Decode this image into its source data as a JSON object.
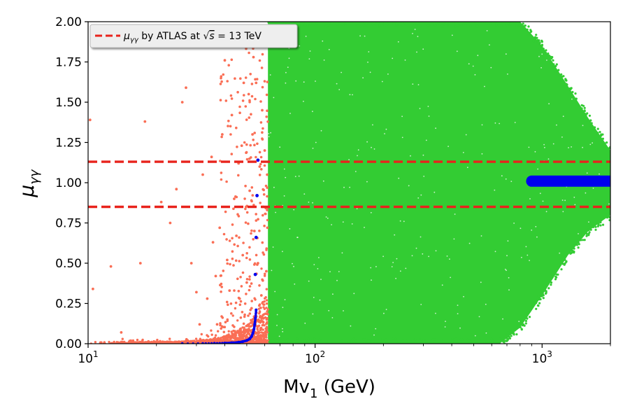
{
  "chart_data": {
    "type": "scatter",
    "title": "",
    "xlabel": {
      "main": "Mv",
      "sub": "1",
      "unit": " (GeV)"
    },
    "ylabel": {
      "main": "μ",
      "sub": "γγ"
    },
    "x_scale": "log",
    "xlim": [
      10,
      2000
    ],
    "ylim": [
      0,
      2
    ],
    "x_ticks": [
      {
        "value": 10,
        "base": "10",
        "exp": "1"
      },
      {
        "value": 100,
        "base": "10",
        "exp": "2"
      },
      {
        "value": 1000,
        "base": "10",
        "exp": "3"
      }
    ],
    "y_ticks": [
      "0.00",
      "0.25",
      "0.50",
      "0.75",
      "1.00",
      "1.25",
      "1.50",
      "1.75",
      "2.00"
    ],
    "grid": false,
    "legend_position": "top-left",
    "colors": {
      "allowed_region": "#33cc33",
      "excluded_points": "#fa6e55",
      "constraint_points": "#0000ee",
      "atlas_band": "#e8231c"
    },
    "series": [
      {
        "name": "μγγ by ATLAS at √s = 13 TeV",
        "legend_prefix": "μ",
        "legend_prefix_sub": "γγ",
        "legend_text": " by ATLAS at ",
        "legend_sqrt_symbol": "√",
        "legend_sqrt_arg": "s",
        "legend_suffix": " = 13 TeV",
        "style": "dashed",
        "y_values": [
          0.85,
          1.13
        ]
      },
      {
        "name": "",
        "role": "allowed_region",
        "style": "dense-scatter",
        "envelope": [
          {
            "x": 62,
            "y_min": 0.0,
            "y_max": 2.0
          },
          {
            "x": 650,
            "y_min": 0.0,
            "y_max": 2.0
          },
          {
            "x": 800,
            "y_min": 0.1,
            "y_max": 2.0
          },
          {
            "x": 1000,
            "y_min": 0.3,
            "y_max": 1.85
          },
          {
            "x": 1300,
            "y_min": 0.55,
            "y_max": 1.6
          },
          {
            "x": 1600,
            "y_min": 0.7,
            "y_max": 1.4
          },
          {
            "x": 2000,
            "y_min": 0.8,
            "y_max": 1.2
          }
        ]
      },
      {
        "name": "",
        "role": "excluded_points",
        "style": "scatter",
        "points": [
          [
            10.2,
            1.39
          ],
          [
            10.5,
            0.34
          ],
          [
            12.6,
            0.48
          ],
          [
            14.0,
            0.07
          ],
          [
            17.0,
            0.5
          ],
          [
            17.8,
            1.38
          ],
          [
            21.0,
            0.88
          ],
          [
            23.0,
            0.75
          ],
          [
            24.5,
            0.96
          ],
          [
            26.0,
            1.5
          ],
          [
            27.0,
            1.59
          ],
          [
            28.5,
            0.5
          ],
          [
            30.0,
            0.32
          ],
          [
            31.0,
            0.12
          ],
          [
            32.0,
            1.05
          ],
          [
            33.5,
            0.28
          ],
          [
            35.0,
            1.16
          ],
          [
            35.5,
            0.63
          ],
          [
            36.5,
            0.42
          ],
          [
            37.0,
            0.12
          ],
          [
            38.0,
            0.72
          ],
          [
            39.0,
            1.3
          ],
          [
            40.0,
            1.76
          ],
          [
            41.0,
            0.52
          ],
          [
            42.0,
            0.33
          ],
          [
            43.0,
            1.42
          ],
          [
            44.0,
            0.9
          ],
          [
            45.0,
            0.67
          ],
          [
            46.0,
            1.12
          ],
          [
            46.5,
            0.28
          ],
          [
            47.5,
            1.23
          ],
          [
            48.0,
            0.55
          ],
          [
            49.0,
            1.87
          ],
          [
            50.0,
            0.38
          ],
          [
            51.0,
            1.55
          ],
          [
            51.5,
            0.95
          ],
          [
            52.5,
            0.22
          ],
          [
            53.0,
            1.3
          ],
          [
            54.0,
            0.7
          ],
          [
            55.0,
            1.62
          ],
          [
            56.0,
            0.5
          ],
          [
            57.0,
            1.1
          ],
          [
            58.0,
            0.3
          ],
          [
            59.0,
            0.85
          ],
          [
            60.0,
            1.2
          ],
          [
            61.0,
            0.45
          ],
          [
            61.5,
            1.05
          ],
          [
            48.5,
            1.62
          ],
          [
            53.5,
            1.78
          ],
          [
            58.5,
            1.45
          ]
        ]
      },
      {
        "name": "",
        "role": "constraint_points",
        "style": "scatter",
        "curve": [
          [
            26,
            0.0
          ],
          [
            32,
            0.001
          ],
          [
            36,
            0.002
          ],
          [
            40,
            0.004
          ],
          [
            43,
            0.006
          ],
          [
            46,
            0.009
          ],
          [
            48,
            0.013
          ],
          [
            50,
            0.02
          ],
          [
            51.5,
            0.03
          ],
          [
            52.5,
            0.045
          ],
          [
            53.2,
            0.065
          ],
          [
            53.8,
            0.09
          ],
          [
            54.2,
            0.12
          ],
          [
            54.6,
            0.16
          ],
          [
            55.0,
            0.21
          ]
        ],
        "isolated": [
          [
            54.5,
            0.43
          ],
          [
            55.0,
            0.66
          ],
          [
            55.5,
            0.92
          ],
          [
            56.0,
            1.14
          ]
        ],
        "cluster": {
          "x_min": 850,
          "x_max": 2000,
          "y_center": 1.01,
          "y_half_height": 0.035
        }
      }
    ]
  }
}
